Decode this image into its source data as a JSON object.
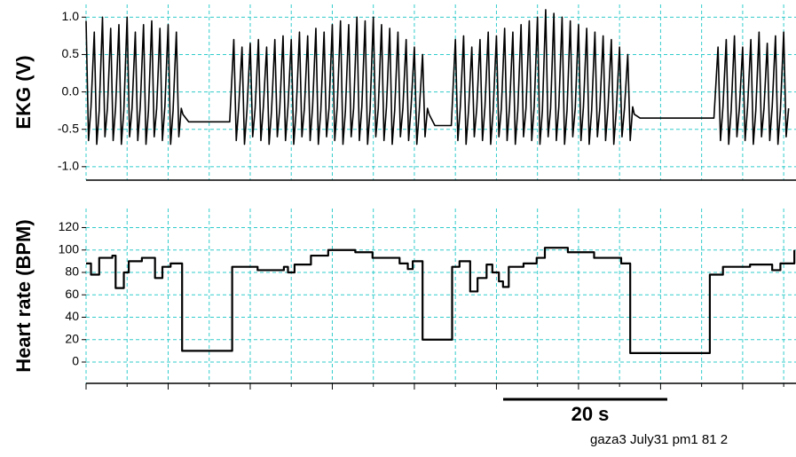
{
  "chart_data": [
    {
      "type": "line",
      "ylabel": "EKG (V)",
      "color": "#000000",
      "grid": true,
      "grid_color": "#33cccc",
      "xlim": [
        0,
        86.5
      ],
      "xticks": [
        0,
        5,
        10,
        15,
        20,
        25,
        30,
        35,
        40,
        45,
        50,
        55,
        60,
        65,
        70,
        75,
        80,
        85
      ],
      "ylim": [
        -1.18,
        1.17
      ],
      "yticks": [
        {
          "value": 1,
          "label": "1.0"
        },
        0.5,
        {
          "value": 0,
          "label": "0.0"
        },
        -0.5,
        {
          "value": -1,
          "label": "-1.0"
        }
      ],
      "x": [
        0,
        0.3,
        0.6,
        1,
        1.3,
        1.6,
        2,
        2.3,
        2.6,
        3,
        3.3,
        3.6,
        4,
        4.3,
        4.6,
        5,
        5.3,
        5.6,
        6,
        6.3,
        6.6,
        7,
        7.3,
        7.6,
        8,
        8.3,
        8.6,
        9,
        9.3,
        9.6,
        10,
        10.3,
        10.6,
        11,
        11.3,
        11.6,
        11.8,
        12.5,
        17.5,
        18,
        18.3,
        18.6,
        19,
        19.3,
        19.6,
        20,
        20.3,
        20.6,
        21,
        21.3,
        21.6,
        22,
        22.3,
        22.6,
        23,
        23.3,
        23.6,
        24,
        24.3,
        24.6,
        25,
        25.3,
        25.6,
        26,
        26.3,
        26.6,
        27,
        27.3,
        27.6,
        28,
        28.3,
        28.6,
        29,
        29.3,
        29.6,
        30,
        30.3,
        30.6,
        31,
        31.3,
        31.6,
        32,
        32.3,
        32.6,
        33,
        33.3,
        33.6,
        34,
        34.3,
        34.6,
        35,
        35.3,
        35.6,
        36,
        36.3,
        36.6,
        37,
        37.3,
        37.6,
        38,
        38.3,
        38.6,
        39,
        39.3,
        39.6,
        40,
        40.3,
        40.6,
        41,
        41.3,
        41.6,
        41.8,
        42.5,
        44.5,
        45,
        45.3,
        45.6,
        46,
        46.3,
        46.6,
        47,
        47.3,
        47.6,
        48,
        48.3,
        48.6,
        49,
        49.3,
        49.6,
        50,
        50.3,
        50.6,
        51,
        51.3,
        51.6,
        52,
        52.3,
        52.6,
        53,
        53.3,
        53.6,
        54,
        54.3,
        54.6,
        55,
        55.3,
        55.6,
        56,
        56.3,
        56.6,
        57,
        57.3,
        57.6,
        58,
        58.3,
        58.6,
        59,
        59.3,
        59.6,
        60,
        60.3,
        60.6,
        61,
        61.3,
        61.6,
        62,
        62.3,
        62.6,
        63,
        63.3,
        63.6,
        64,
        64.3,
        64.6,
        65,
        65.3,
        65.6,
        66,
        66.3,
        66.6,
        66.8,
        67.5,
        76.5,
        77,
        77.3,
        77.6,
        78,
        78.3,
        78.6,
        79,
        79.3,
        79.6,
        80,
        80.3,
        80.6,
        81,
        81.3,
        81.6,
        82,
        82.3,
        82.6,
        83,
        83.3,
        83.6,
        84,
        84.3,
        84.6,
        85,
        85.3,
        85.6
      ],
      "values": [
        0.95,
        -0.65,
        -0.2,
        0.8,
        -0.7,
        -0.25,
        1,
        -0.6,
        -0.22,
        0.85,
        -0.65,
        -0.2,
        0.9,
        -0.7,
        -0.25,
        1,
        -0.6,
        -0.22,
        0.8,
        -0.65,
        -0.2,
        0.9,
        -0.7,
        -0.25,
        0.95,
        -0.6,
        -0.22,
        0.85,
        -0.65,
        -0.2,
        0.9,
        -0.7,
        -0.25,
        0.8,
        -0.6,
        -0.22,
        -0.3,
        -0.4,
        -0.4,
        0.7,
        -0.65,
        -0.2,
        0.6,
        -0.7,
        -0.25,
        0.65,
        -0.6,
        -0.22,
        0.7,
        -0.65,
        -0.2,
        0.6,
        -0.7,
        -0.25,
        0.7,
        -0.6,
        -0.22,
        0.75,
        -0.65,
        -0.2,
        0.7,
        -0.7,
        -0.25,
        0.8,
        -0.6,
        -0.22,
        0.75,
        -0.65,
        -0.2,
        0.85,
        -0.7,
        -0.25,
        0.8,
        -0.6,
        -0.22,
        0.9,
        -0.65,
        -0.2,
        0.95,
        -0.7,
        -0.25,
        0.9,
        -0.6,
        -0.22,
        1,
        -0.65,
        -0.2,
        0.95,
        -0.7,
        -0.25,
        1,
        -0.6,
        -0.22,
        0.9,
        -0.65,
        -0.2,
        0.85,
        -0.7,
        -0.25,
        0.8,
        -0.6,
        -0.22,
        0.7,
        -0.65,
        -0.2,
        0.6,
        -0.7,
        -0.25,
        0.5,
        -0.6,
        -0.22,
        -0.3,
        -0.45,
        -0.45,
        0.7,
        -0.65,
        -0.2,
        0.75,
        -0.7,
        -0.25,
        0.6,
        -0.6,
        -0.22,
        0.7,
        -0.65,
        -0.2,
        0.8,
        -0.7,
        -0.25,
        0.75,
        -0.6,
        -0.22,
        0.85,
        -0.65,
        -0.2,
        0.8,
        -0.7,
        -0.25,
        0.9,
        -0.6,
        -0.22,
        0.95,
        -0.65,
        -0.2,
        1,
        -0.7,
        -0.25,
        1.1,
        -0.6,
        -0.22,
        1.05,
        -0.65,
        -0.2,
        1,
        -0.7,
        -0.25,
        0.95,
        -0.6,
        -0.22,
        0.9,
        -0.65,
        -0.2,
        0.85,
        -0.7,
        -0.25,
        0.8,
        -0.6,
        -0.22,
        0.75,
        -0.65,
        -0.2,
        0.7,
        -0.7,
        -0.25,
        0.6,
        -0.6,
        -0.22,
        0.5,
        -0.65,
        -0.2,
        -0.3,
        -0.35,
        -0.35,
        0.6,
        -0.65,
        -0.2,
        0.7,
        -0.7,
        -0.25,
        0.75,
        -0.6,
        -0.22,
        0.6,
        -0.65,
        -0.2,
        0.7,
        -0.7,
        -0.25,
        0.8,
        -0.6,
        -0.22,
        0.65,
        -0.65,
        -0.2,
        0.75,
        -0.7,
        -0.25,
        0.8,
        -0.6,
        -0.22
      ]
    },
    {
      "type": "step",
      "drawstyle": "steps-post",
      "ylabel": "Heart rate (BPM)",
      "color": "#000000",
      "grid": true,
      "grid_color": "#33cccc",
      "xlim": [
        0,
        86.5
      ],
      "xticks": [
        0,
        5,
        10,
        15,
        20,
        25,
        30,
        35,
        40,
        45,
        50,
        55,
        60,
        65,
        70,
        75,
        80,
        85
      ],
      "ylim": [
        -19,
        137
      ],
      "yticks": [
        0,
        20,
        40,
        60,
        80,
        100,
        120
      ],
      "x": [
        0,
        0.6,
        1.6,
        3.2,
        3.6,
        4.6,
        5.2,
        6.8,
        8.4,
        9.3,
        10.3,
        11.7,
        17.8,
        20.9,
        24.1,
        24.6,
        25.4,
        27.4,
        29.5,
        32.8,
        34.9,
        38.2,
        39.2,
        39.8,
        41.0,
        44.6,
        45.5,
        46.8,
        47.7,
        48.8,
        49.5,
        50.3,
        50.8,
        51.5,
        53.3,
        54.9,
        55.9,
        58.7,
        61.9,
        65.2,
        66.3,
        76.0,
        77.6,
        80.9,
        83.6,
        84.6,
        86.3
      ],
      "values": [
        88,
        78,
        93,
        95,
        66,
        80,
        90,
        93,
        75,
        85,
        88,
        10,
        85,
        82,
        85,
        80,
        87,
        95,
        100,
        98,
        93,
        88,
        83,
        90,
        20,
        85,
        90,
        63,
        75,
        87,
        80,
        72,
        67,
        85,
        88,
        93,
        102,
        98,
        93,
        88,
        8,
        78,
        85,
        87,
        82,
        88,
        100
      ]
    }
  ],
  "scalebar": {
    "length": 20,
    "label": "20 s"
  },
  "footer": "gaza3  July31 pm1 81 2"
}
